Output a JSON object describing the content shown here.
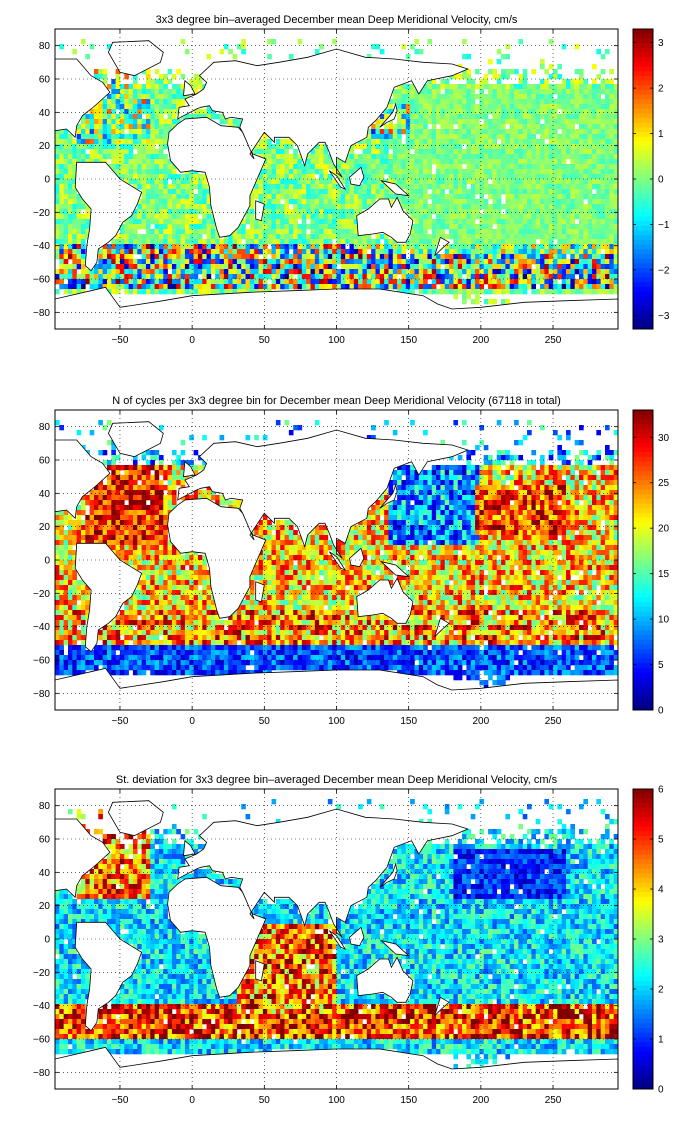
{
  "figure": {
    "background": "#ffffff"
  },
  "chart_data": [
    {
      "type": "heatmap",
      "title": "3x3 degree bin–averaged December mean Deep Meridional Velocity, cm/s",
      "xlabel": "",
      "ylabel": "",
      "xlim": [
        -95,
        295
      ],
      "ylim": [
        -90,
        90
      ],
      "x_ticks": [
        -50,
        0,
        50,
        100,
        150,
        200,
        250
      ],
      "y_ticks": [
        80,
        60,
        40,
        20,
        0,
        -20,
        -40,
        -60,
        -80
      ],
      "grid": true,
      "grid_style": "dotted",
      "colormap": "jet",
      "colorbar": {
        "min": -3.3,
        "max": 3.3,
        "ticks": [
          3,
          2,
          1,
          0,
          -1,
          -2,
          -3
        ]
      },
      "field": "diverging",
      "seed": 11
    },
    {
      "type": "heatmap",
      "title": "N of cycles per 3x3 degree bin for December mean Deep Meridional Velocity (67118 in total)",
      "xlabel": "",
      "ylabel": "",
      "xlim": [
        -95,
        295
      ],
      "ylim": [
        -90,
        90
      ],
      "x_ticks": [
        -50,
        0,
        50,
        100,
        150,
        200,
        250
      ],
      "y_ticks": [
        80,
        60,
        40,
        20,
        0,
        -20,
        -40,
        -60,
        -80
      ],
      "grid": true,
      "grid_style": "dotted",
      "colormap": "jet",
      "colorbar": {
        "min": 0,
        "max": 33,
        "ticks": [
          30,
          25,
          20,
          15,
          10,
          5,
          0
        ]
      },
      "field": "counts",
      "seed": 23
    },
    {
      "type": "heatmap",
      "title": "St. deviation for 3x3 degree bin–averaged December mean Deep Meridional Velocity, cm/s",
      "xlabel": "",
      "ylabel": "",
      "xlim": [
        -95,
        295
      ],
      "ylim": [
        -90,
        90
      ],
      "x_ticks": [
        -50,
        0,
        50,
        100,
        150,
        200,
        250
      ],
      "y_ticks": [
        80,
        60,
        40,
        20,
        0,
        -20,
        -40,
        -60,
        -80
      ],
      "grid": true,
      "grid_style": "dotted",
      "colormap": "jet",
      "colorbar": {
        "min": 0,
        "max": 6,
        "ticks": [
          6,
          5,
          4,
          3,
          2,
          1,
          0
        ]
      },
      "field": "stdev",
      "seed": 37
    }
  ]
}
